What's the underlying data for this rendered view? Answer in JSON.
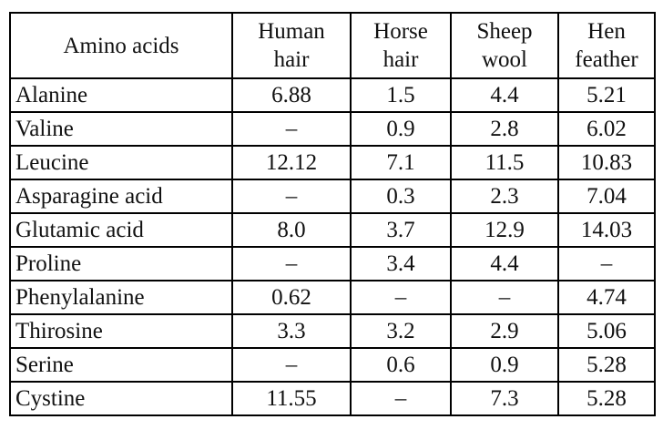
{
  "table": {
    "headers": [
      {
        "line1": "Amino acids",
        "line2": ""
      },
      {
        "line1": "Human",
        "line2": "hair"
      },
      {
        "line1": "Horse",
        "line2": "hair"
      },
      {
        "line1": "Sheep",
        "line2": "wool"
      },
      {
        "line1": "Hen",
        "line2": "feather"
      }
    ],
    "rows": [
      [
        "Alanine",
        "6.88",
        "1.5",
        "4.4",
        "5.21"
      ],
      [
        "Valine",
        "–",
        "0.9",
        "2.8",
        "6.02"
      ],
      [
        "Leucine",
        "12.12",
        "7.1",
        "11.5",
        "10.83"
      ],
      [
        "Asparagine acid",
        "–",
        "0.3",
        "2.3",
        "7.04"
      ],
      [
        "Glutamic acid",
        "8.0",
        "3.7",
        "12.9",
        "14.03"
      ],
      [
        "Proline",
        "–",
        "3.4",
        "4.4",
        "–"
      ],
      [
        "Phenylalanine",
        "0.62",
        "–",
        "–",
        "4.74"
      ],
      [
        "Thirosine",
        "3.3",
        "3.2",
        "2.9",
        "5.06"
      ],
      [
        "Serine",
        "–",
        "0.6",
        "0.9",
        "5.28"
      ],
      [
        "Cystine",
        "11.55",
        "–",
        "7.3",
        "5.28"
      ]
    ]
  }
}
